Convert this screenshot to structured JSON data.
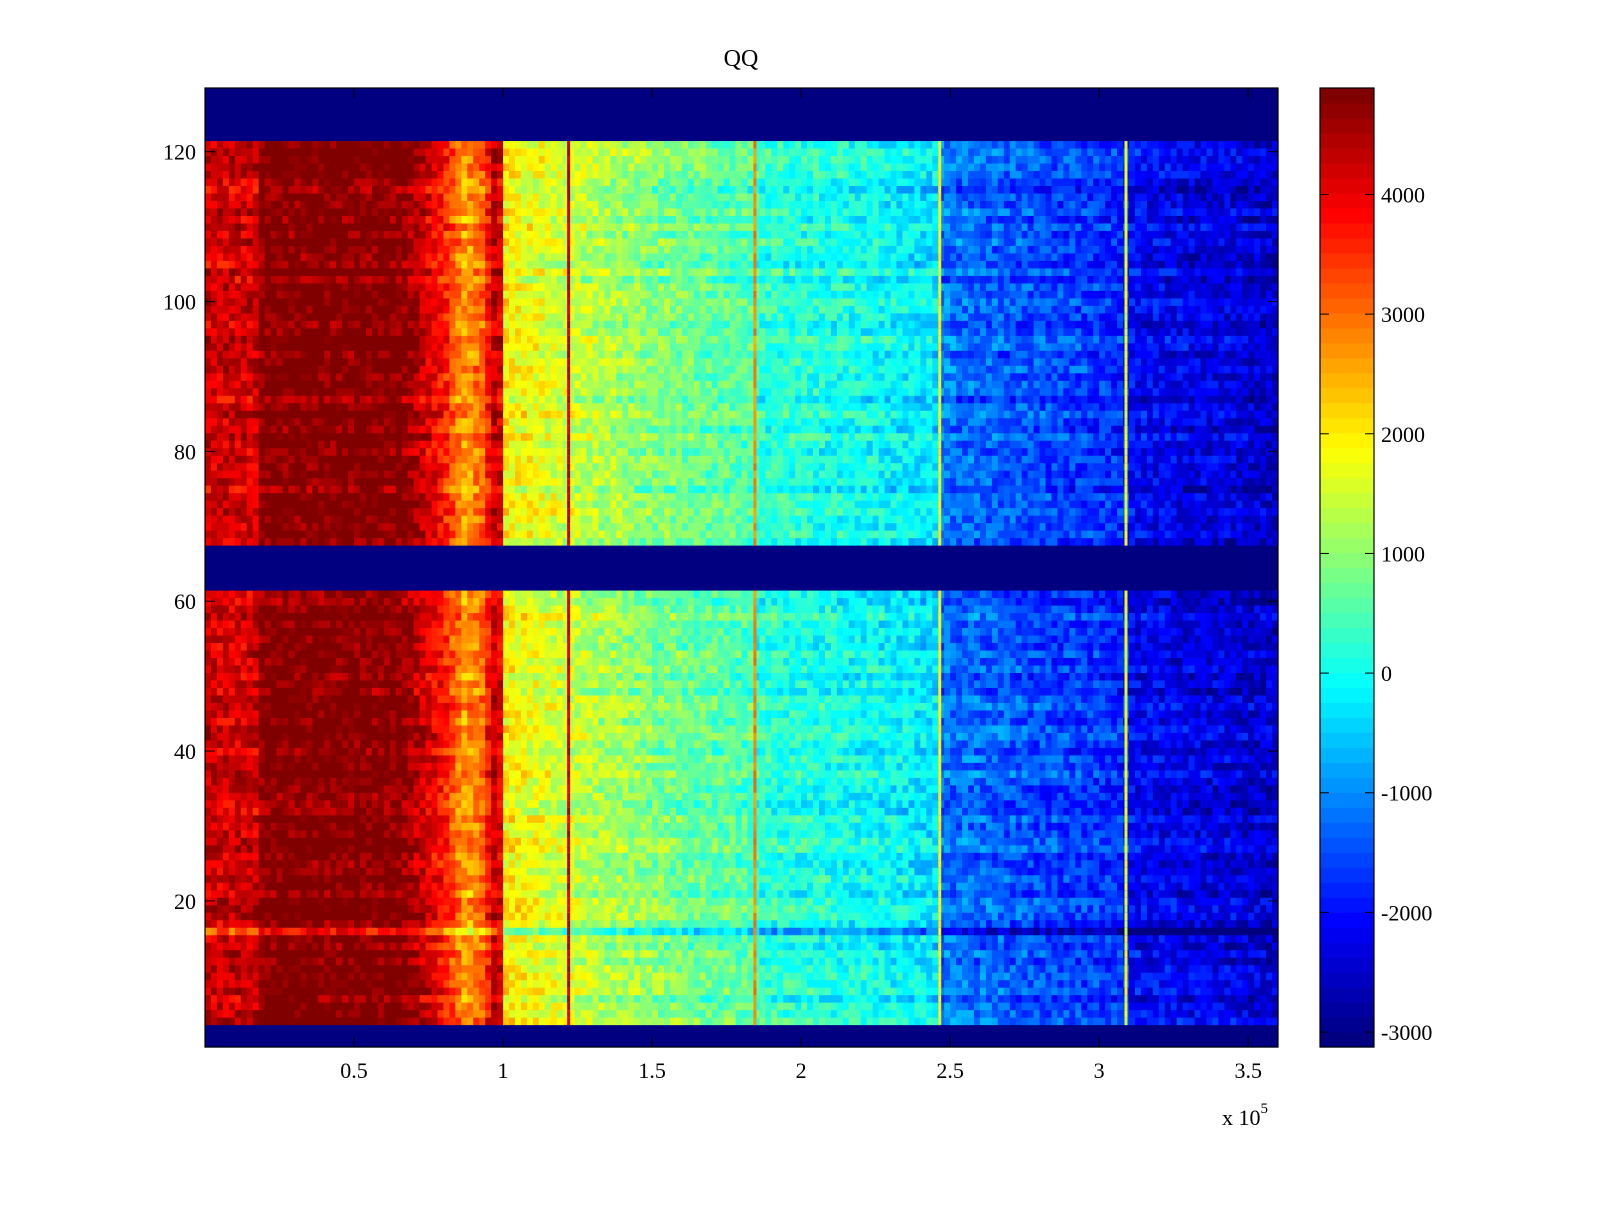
{
  "chart_data": {
    "type": "heatmap",
    "title": "QQ",
    "xlabel": "",
    "ylabel": "",
    "x_exponent_label": "x 10",
    "x_exponent_power": "5",
    "xlim": [
      0,
      3.6
    ],
    "ylim": [
      0.5,
      128.5
    ],
    "xticks": [
      0.5,
      1,
      1.5,
      2,
      2.5,
      3,
      3.5
    ],
    "xtick_labels": [
      "0.5",
      "1",
      "1.5",
      "2",
      "2.5",
      "3",
      "3.5"
    ],
    "yticks": [
      20,
      40,
      60,
      80,
      100,
      120
    ],
    "ytick_labels": [
      "20",
      "40",
      "60",
      "80",
      "100",
      "120"
    ],
    "colormap": "jet",
    "clim": [
      -3125,
      4890
    ],
    "colorbar_ticks": [
      -3000,
      -2000,
      -1000,
      0,
      1000,
      2000,
      3000,
      4000
    ],
    "colorbar_tick_labels": [
      "-3000",
      "-2000",
      "-1000",
      "0",
      "1000",
      "2000",
      "3000",
      "4000"
    ],
    "n_rows": 128,
    "empty_rows": [
      [
        1,
        3
      ],
      [
        62,
        67
      ],
      [
        122,
        128
      ]
    ],
    "empty_value": -3125,
    "column_profile": [
      [
        0.0,
        4200
      ],
      [
        0.17,
        4200
      ],
      [
        0.18,
        4850
      ],
      [
        0.65,
        4850
      ],
      [
        0.7,
        4500
      ],
      [
        0.8,
        3700
      ],
      [
        0.87,
        2600
      ],
      [
        0.93,
        3000
      ],
      [
        0.97,
        4300
      ],
      [
        1.0,
        4000
      ],
      [
        1.01,
        1900
      ],
      [
        1.2,
        1500
      ],
      [
        1.5,
        900
      ],
      [
        1.84,
        450
      ],
      [
        1.85,
        250
      ],
      [
        2.2,
        0
      ],
      [
        2.45,
        -300
      ],
      [
        2.47,
        -1200
      ],
      [
        3.08,
        -1800
      ],
      [
        3.1,
        -2100
      ],
      [
        3.6,
        -2500
      ]
    ],
    "noise_amplitude": 500,
    "vertical_lines": [
      {
        "x": 1.22,
        "value": 4200
      },
      {
        "x": 1.845,
        "value": 2800
      },
      {
        "x": 2.465,
        "value": 1800
      },
      {
        "x": 3.09,
        "value": 1700
      }
    ],
    "highlight_row": {
      "row": 16,
      "offset": -900
    }
  }
}
